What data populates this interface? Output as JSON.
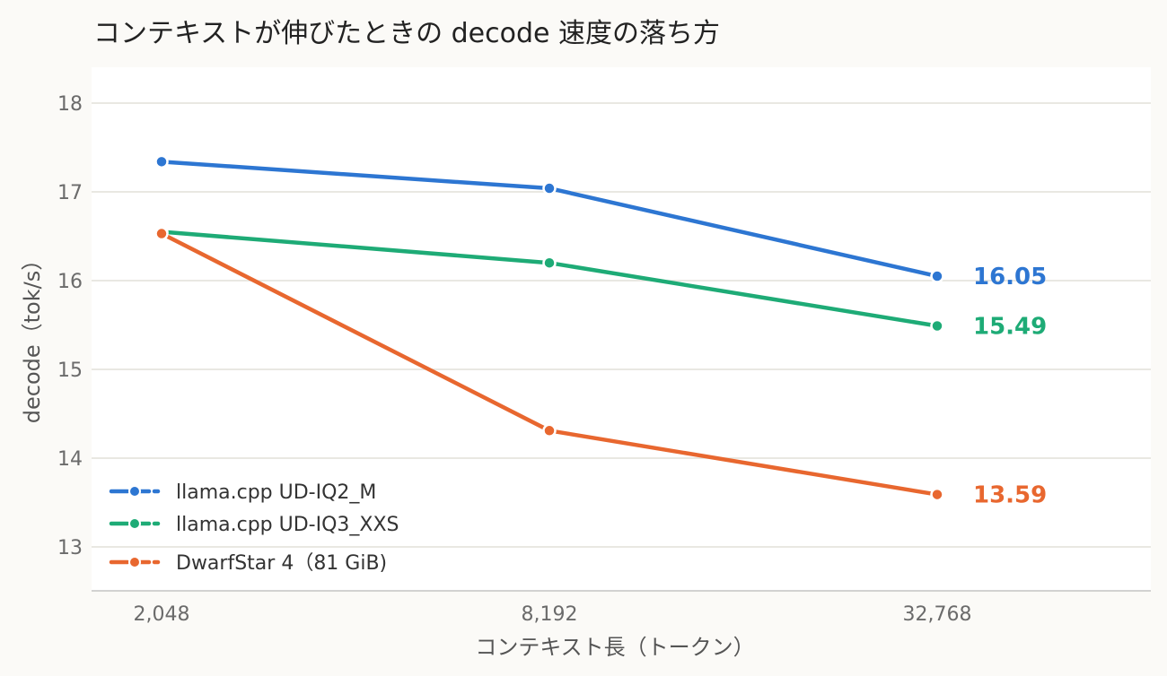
{
  "chart_data": {
    "type": "line",
    "title": "コンテキストが伸びたときの decode 速度の落ち方",
    "xlabel": "コンテキスト長（トークン）",
    "ylabel": "decode（tok/s）",
    "categories": [
      "2,048",
      "8,192",
      "32,768"
    ],
    "ylim": [
      12.5,
      18.4
    ],
    "yticks": [
      13,
      14,
      15,
      16,
      17,
      18
    ],
    "grid": true,
    "legend_position": "bottom-left",
    "series": [
      {
        "name": "llama.cpp UD-IQ2_M",
        "color": "#2d76d2",
        "values": [
          17.34,
          17.04,
          16.05
        ],
        "end_label": "16.05"
      },
      {
        "name": "llama.cpp UD-IQ3_XXS",
        "color": "#1eab76",
        "values": [
          16.55,
          16.2,
          15.49
        ],
        "end_label": "15.49"
      },
      {
        "name": "DwarfStar 4（81 GiB)",
        "color": "#e8672f",
        "values": [
          16.53,
          14.31,
          13.59
        ],
        "end_label": "13.59"
      }
    ]
  }
}
